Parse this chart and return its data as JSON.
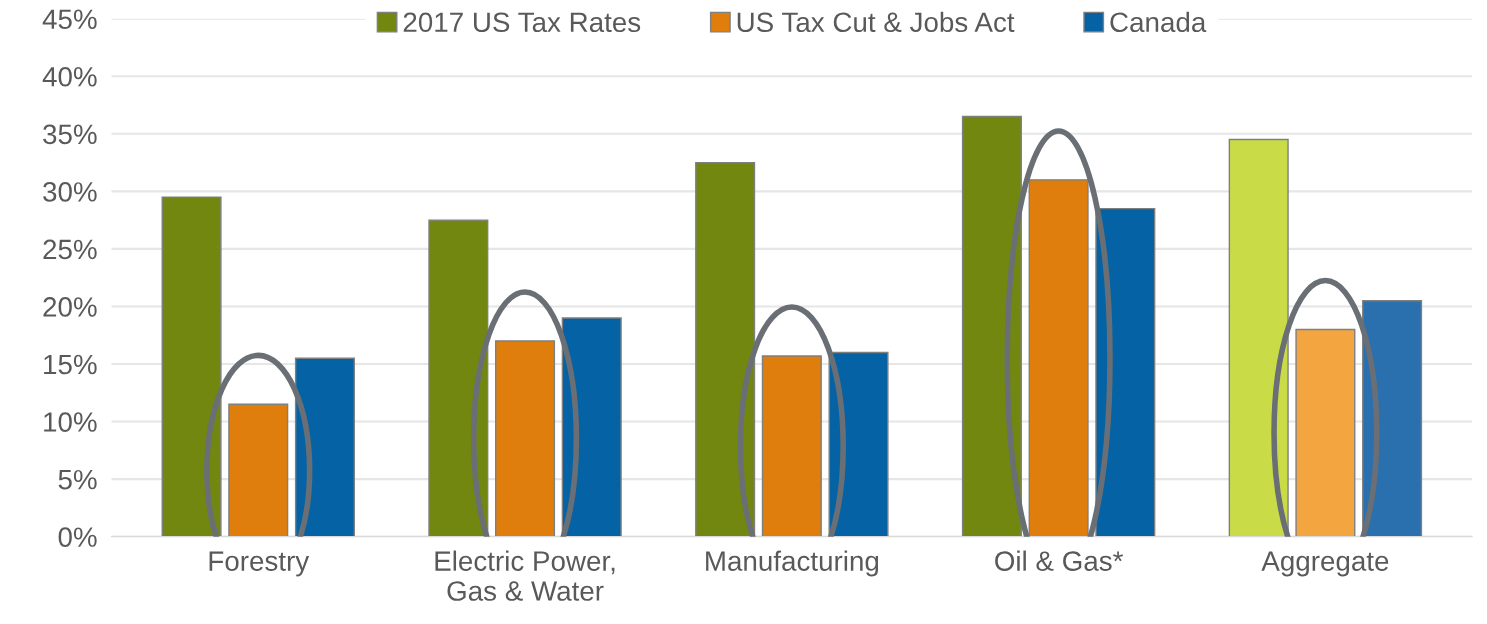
{
  "chart_data": {
    "type": "bar",
    "categories": [
      "Forestry",
      "Electric Power,\nGas & Water",
      "Manufacturing",
      "Oil & Gas*",
      "Aggregate"
    ],
    "series": [
      {
        "name": "2017 US Tax Rates",
        "color": "#72870f",
        "colors": [
          "#72870f",
          "#72870f",
          "#72870f",
          "#72870f",
          "#c9dc48"
        ],
        "values": [
          29.5,
          27.5,
          32.5,
          36.5,
          34.5
        ]
      },
      {
        "name": "US Tax Cut & Jobs Act",
        "color": "#df7e0c",
        "colors": [
          "#df7e0c",
          "#df7e0c",
          "#df7e0c",
          "#df7e0c",
          "#f3a640"
        ],
        "values": [
          11.5,
          17,
          15.7,
          31,
          18
        ]
      },
      {
        "name": "Canada",
        "color": "#0563a5",
        "colors": [
          "#0563a5",
          "#0563a5",
          "#0563a5",
          "#0563a5",
          "#2a6fae"
        ],
        "values": [
          15.5,
          19,
          16,
          28.5,
          20.5
        ]
      }
    ],
    "ylim": [
      0,
      45
    ],
    "yticks": [
      {
        "value": 0,
        "label": "0%"
      },
      {
        "value": 5,
        "label": "5%"
      },
      {
        "value": 10,
        "label": "10%"
      },
      {
        "value": 15,
        "label": "15%"
      },
      {
        "value": 20,
        "label": "20%"
      },
      {
        "value": 25,
        "label": "25%"
      },
      {
        "value": 30,
        "label": "30%"
      },
      {
        "value": 35,
        "label": "35%"
      },
      {
        "value": 40,
        "label": "40%"
      },
      {
        "value": 45,
        "label": "45%"
      }
    ],
    "grid": "y",
    "legend": "top"
  }
}
